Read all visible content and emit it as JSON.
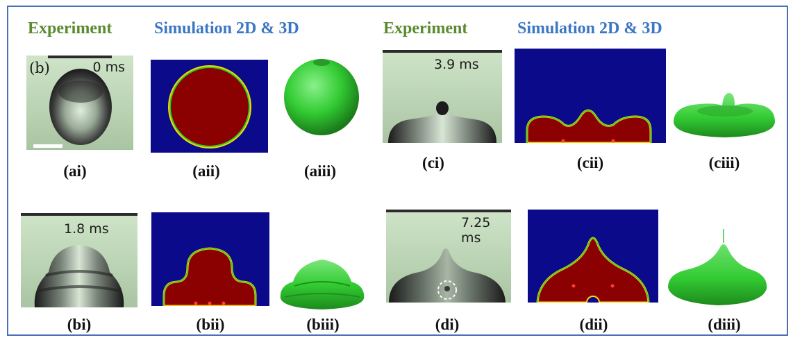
{
  "headers": {
    "left_experiment": "Experiment",
    "left_simulation": "Simulation 2D & 3D",
    "right_experiment": "Experiment",
    "right_simulation": "Simulation 2D & 3D"
  },
  "panels": {
    "a": {
      "time": "0 ms",
      "panel_letter": "(b)",
      "labels": [
        "(ai)",
        "(aii)",
        "(aiii)"
      ]
    },
    "b": {
      "time": "1.8 ms",
      "labels": [
        "(bi)",
        "(bii)",
        "(biii)"
      ]
    },
    "c": {
      "time": "3.9 ms",
      "labels": [
        "(ci)",
        "(cii)",
        "(ciii)"
      ]
    },
    "d": {
      "time": "7.25 ms",
      "labels": [
        "(di)",
        "(dii)",
        "(diii)"
      ]
    }
  },
  "colors": {
    "border": "#4a6fb5",
    "experiment_header": "#5a8a2f",
    "simulation_header": "#3a76c4",
    "sim_background": "#0a0a8a",
    "sim_droplet": "#8b0000",
    "render_green": "#33cc33"
  }
}
